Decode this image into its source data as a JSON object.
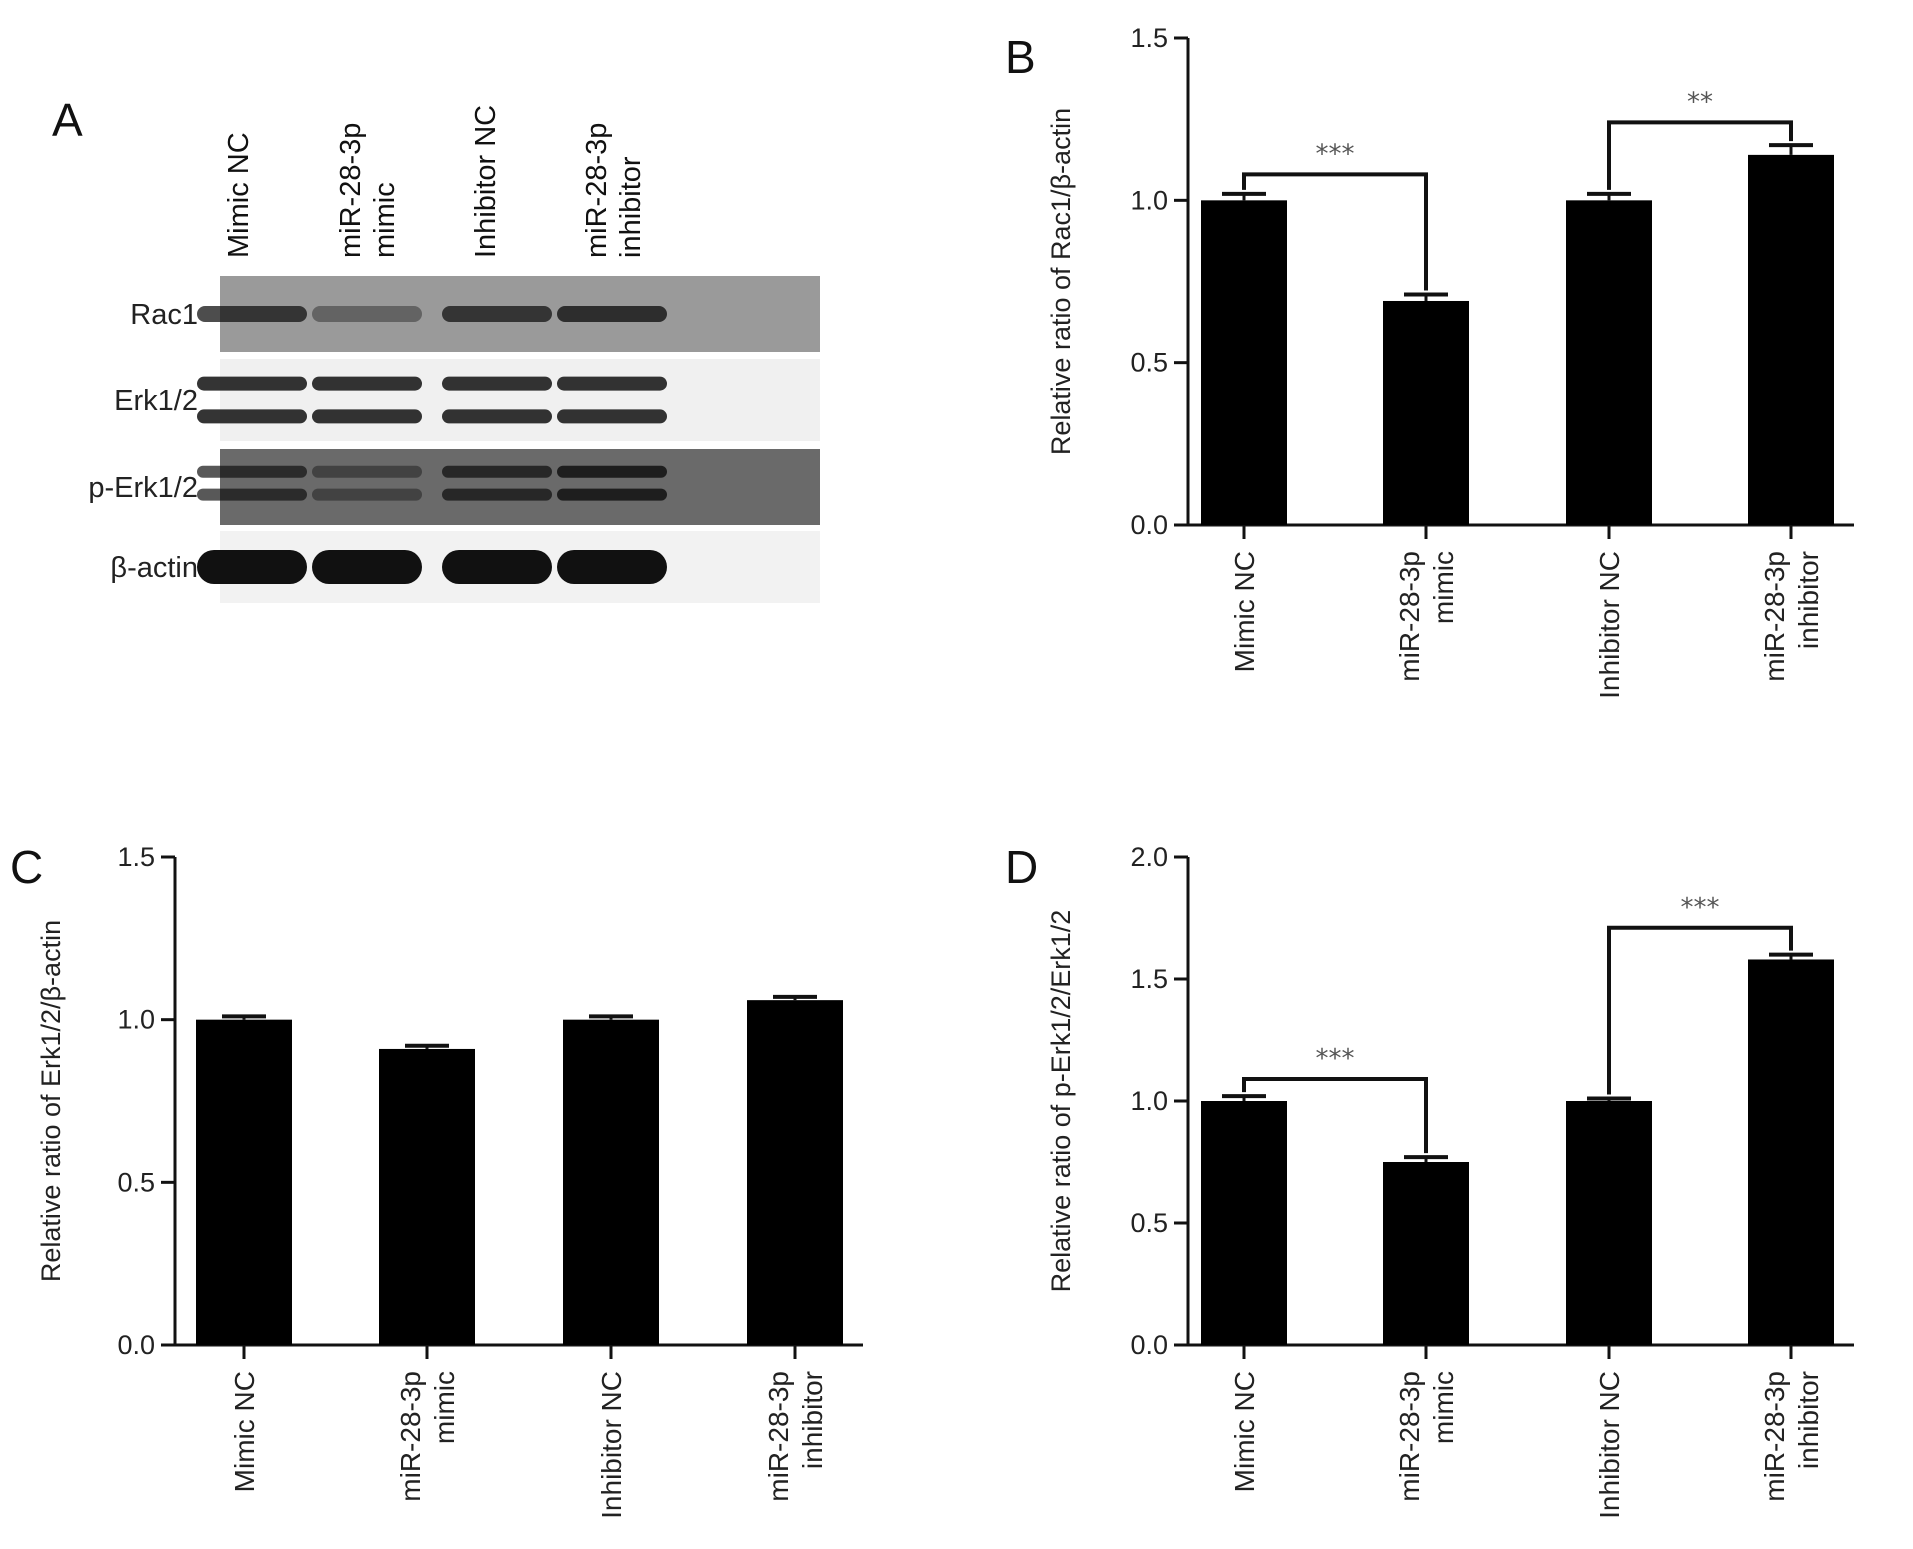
{
  "panel_A": {
    "letter": "A",
    "lanes": [
      {
        "lines": [
          "Mimic NC"
        ]
      },
      {
        "lines": [
          "miR-28-3p",
          "mimic"
        ]
      },
      {
        "lines": [
          "Inhibitor NC"
        ]
      },
      {
        "lines": [
          "miR-28-3p",
          "inhibitor"
        ]
      }
    ],
    "blots": [
      {
        "label": "Rac1",
        "band_intensity": [
          0.75,
          0.4,
          0.75,
          0.8
        ]
      },
      {
        "label": "Erk1/2",
        "band_intensity": [
          0.85,
          0.85,
          0.85,
          0.85
        ]
      },
      {
        "label": "p-Erk1/2",
        "band_intensity": [
          0.7,
          0.45,
          0.75,
          0.85
        ]
      },
      {
        "label": "β-actin",
        "band_intensity": [
          1.0,
          1.0,
          1.0,
          1.0
        ]
      }
    ]
  },
  "chart_data": [
    {
      "panel": "B",
      "type": "bar",
      "categories": [
        [
          "Mimic NC"
        ],
        [
          "miR-28-3p",
          "mimic"
        ],
        [
          "Inhibitor NC"
        ],
        [
          "miR-28-3p",
          "inhibitor"
        ]
      ],
      "values": [
        1.0,
        0.69,
        1.0,
        1.14
      ],
      "errors": [
        0.02,
        0.02,
        0.02,
        0.03
      ],
      "ylabel": "Relative ratio of Rac1/β-actin",
      "ylim": [
        0,
        1.5
      ],
      "yticks": [
        "0.0",
        "0.5",
        "1.0",
        "1.5"
      ],
      "bar_color": "#000000",
      "significance": [
        {
          "from": 0,
          "to": 1,
          "label": "***",
          "level": 1.08
        },
        {
          "from": 2,
          "to": 3,
          "label": "**",
          "level": 1.24
        }
      ]
    },
    {
      "panel": "C",
      "type": "bar",
      "categories": [
        [
          "Mimic NC"
        ],
        [
          "miR-28-3p",
          "mimic"
        ],
        [
          "Inhibitor NC"
        ],
        [
          "miR-28-3p",
          "inhibitor"
        ]
      ],
      "values": [
        1.0,
        0.91,
        1.0,
        1.06
      ],
      "errors": [
        0.01,
        0.01,
        0.01,
        0.01
      ],
      "ylabel": "Relative ratio of Erk1/2/β-actin",
      "ylim": [
        0,
        1.5
      ],
      "yticks": [
        "0.0",
        "0.5",
        "1.0",
        "1.5"
      ],
      "bar_color": "#000000",
      "significance": []
    },
    {
      "panel": "D",
      "type": "bar",
      "categories": [
        [
          "Mimic NC"
        ],
        [
          "miR-28-3p",
          "mimic"
        ],
        [
          "Inhibitor NC"
        ],
        [
          "miR-28-3p",
          "inhibitor"
        ]
      ],
      "values": [
        1.0,
        0.75,
        1.0,
        1.58
      ],
      "errors": [
        0.02,
        0.02,
        0.01,
        0.02
      ],
      "ylabel": "Relative ratio of p-Erk1/2/Erk1/2",
      "ylim": [
        0,
        2.0
      ],
      "yticks": [
        "0.0",
        "0.5",
        "1.0",
        "1.5",
        "2.0"
      ],
      "bar_color": "#000000",
      "significance": [
        {
          "from": 0,
          "to": 1,
          "label": "***",
          "level": 1.09
        },
        {
          "from": 2,
          "to": 3,
          "label": "***",
          "level": 1.71
        }
      ]
    }
  ]
}
